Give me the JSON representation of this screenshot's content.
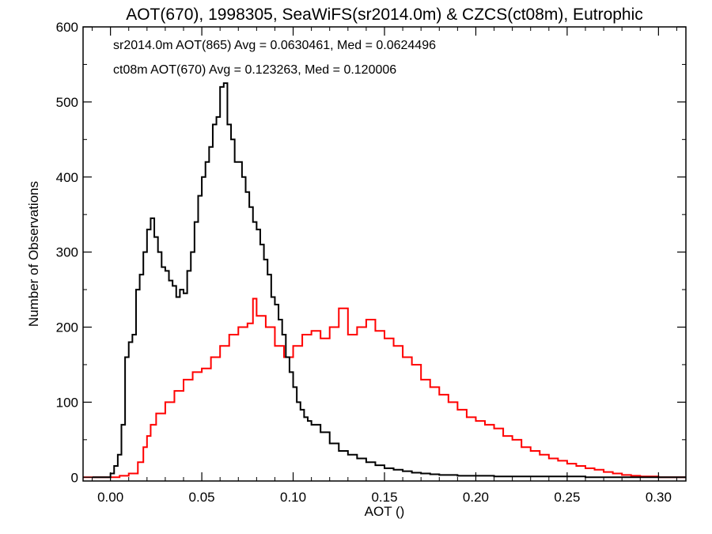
{
  "chart_data": {
    "type": "line",
    "title": "AOT(670), 1998305, SeaWiFS(sr2014.0m) & CZCS(ct08m), Eutrophic",
    "xlabel": "AOT ()",
    "ylabel": "Number of Observations",
    "xlim": [
      -0.015,
      0.315
    ],
    "ylim": [
      -5,
      600
    ],
    "x_ticks": [
      0.0,
      0.05,
      0.1,
      0.15,
      0.2,
      0.25,
      0.3
    ],
    "x_tick_labels": [
      "0.00",
      "0.05",
      "0.10",
      "0.15",
      "0.20",
      "0.25",
      "0.30"
    ],
    "y_ticks": [
      0,
      100,
      200,
      300,
      400,
      500,
      600
    ],
    "y_tick_labels": [
      "0",
      "100",
      "200",
      "300",
      "400",
      "500",
      "600"
    ],
    "step": "histogram",
    "annotations": [
      {
        "text": "sr2014.0m AOT(865) Avg = 0.0630461, Med = 0.0624496",
        "color": "#000000"
      },
      {
        "text": "ct08m AOT(670) Avg = 0.123263, Med = 0.120006",
        "color": "#ff0000"
      }
    ],
    "series": [
      {
        "color": "#000000",
        "x": [
          -0.01,
          0.0,
          0.002,
          0.004,
          0.006,
          0.008,
          0.01,
          0.012,
          0.014,
          0.016,
          0.018,
          0.02,
          0.022,
          0.024,
          0.026,
          0.028,
          0.03,
          0.032,
          0.034,
          0.036,
          0.038,
          0.04,
          0.042,
          0.044,
          0.046,
          0.048,
          0.05,
          0.052,
          0.054,
          0.056,
          0.058,
          0.06,
          0.062,
          0.064,
          0.066,
          0.068,
          0.07,
          0.072,
          0.074,
          0.076,
          0.078,
          0.08,
          0.082,
          0.084,
          0.086,
          0.088,
          0.09,
          0.092,
          0.094,
          0.096,
          0.098,
          0.1,
          0.102,
          0.104,
          0.106,
          0.108,
          0.11,
          0.115,
          0.12,
          0.125,
          0.13,
          0.135,
          0.14,
          0.145,
          0.15,
          0.155,
          0.16,
          0.165,
          0.17,
          0.175,
          0.18,
          0.19,
          0.2,
          0.21,
          0.22,
          0.24,
          0.26,
          0.28,
          0.3,
          0.315
        ],
        "y": [
          0,
          5,
          15,
          30,
          70,
          160,
          180,
          190,
          250,
          270,
          300,
          330,
          345,
          320,
          300,
          280,
          275,
          262,
          255,
          240,
          250,
          245,
          275,
          300,
          340,
          375,
          400,
          420,
          440,
          470,
          480,
          520,
          525,
          470,
          450,
          420,
          420,
          400,
          380,
          360,
          340,
          330,
          310,
          290,
          270,
          240,
          230,
          210,
          190,
          160,
          140,
          120,
          100,
          90,
          80,
          75,
          70,
          60,
          45,
          35,
          30,
          25,
          20,
          16,
          12,
          10,
          8,
          6,
          5,
          4,
          3,
          2,
          2,
          1,
          1,
          1,
          0,
          0,
          0,
          0
        ]
      },
      {
        "color": "#ff0000",
        "x": [
          -0.015,
          0.0,
          0.005,
          0.01,
          0.015,
          0.018,
          0.02,
          0.022,
          0.025,
          0.03,
          0.035,
          0.04,
          0.045,
          0.05,
          0.055,
          0.06,
          0.065,
          0.07,
          0.075,
          0.078,
          0.08,
          0.085,
          0.09,
          0.095,
          0.1,
          0.105,
          0.11,
          0.115,
          0.12,
          0.125,
          0.13,
          0.135,
          0.14,
          0.145,
          0.15,
          0.155,
          0.16,
          0.165,
          0.17,
          0.175,
          0.18,
          0.185,
          0.19,
          0.195,
          0.2,
          0.205,
          0.21,
          0.215,
          0.22,
          0.225,
          0.23,
          0.235,
          0.24,
          0.245,
          0.25,
          0.255,
          0.26,
          0.265,
          0.27,
          0.275,
          0.28,
          0.285,
          0.29,
          0.3,
          0.315
        ],
        "y": [
          0,
          0,
          2,
          5,
          20,
          40,
          55,
          70,
          85,
          100,
          115,
          130,
          140,
          145,
          160,
          175,
          190,
          200,
          205,
          238,
          215,
          200,
          175,
          160,
          175,
          190,
          195,
          185,
          200,
          225,
          190,
          200,
          210,
          195,
          185,
          175,
          160,
          150,
          130,
          120,
          110,
          100,
          90,
          80,
          75,
          70,
          65,
          55,
          50,
          40,
          35,
          30,
          25,
          22,
          18,
          15,
          12,
          10,
          7,
          5,
          3,
          2,
          1,
          0,
          0
        ]
      }
    ]
  }
}
